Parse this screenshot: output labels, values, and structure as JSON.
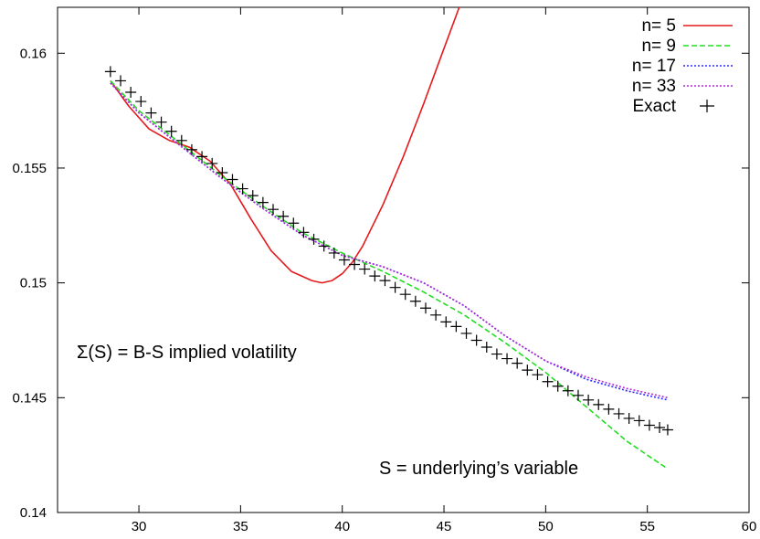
{
  "chart_data": {
    "type": "line",
    "title": "",
    "xlabel": "",
    "ylabel": "",
    "xlim": [
      26,
      60
    ],
    "ylim": [
      0.14,
      0.162
    ],
    "xticks": [
      30,
      35,
      40,
      45,
      50,
      55,
      60
    ],
    "yticks": [
      0.14,
      0.145,
      0.15,
      0.155,
      0.16
    ],
    "xtick_labels": [
      "30",
      "35",
      "40",
      "45",
      "50",
      "55",
      "60"
    ],
    "ytick_labels": [
      "0.14",
      "0.145",
      "0.15",
      "0.155",
      "0.16"
    ],
    "grid": false,
    "legend_position": "top-right",
    "annotations": [
      {
        "text": "Σ(S)  = B-S implied volatility"
      },
      {
        "text": "S = underlying’s variable"
      }
    ],
    "series": [
      {
        "name": "n= 5",
        "color": "#e41a1c",
        "style": "solid",
        "x": [
          28.6,
          29.5,
          30.5,
          31.5,
          32.5,
          33.5,
          34.5,
          35.5,
          36.5,
          37.5,
          38.5,
          39.0,
          39.5,
          40.0,
          40.5,
          41.0,
          42.0,
          43.0,
          44.0,
          45.0,
          46.0,
          46.5
        ],
        "y": [
          0.1588,
          0.1577,
          0.1567,
          0.1562,
          0.1559,
          0.1553,
          0.1543,
          0.1528,
          0.1514,
          0.1505,
          0.1501,
          0.15,
          0.1501,
          0.1504,
          0.1509,
          0.1516,
          0.1534,
          0.1555,
          0.1578,
          0.1602,
          0.1626,
          0.1638
        ]
      },
      {
        "name": "n= 9",
        "color": "#22dd22",
        "style": "dashed",
        "x": [
          28.6,
          30,
          32,
          34,
          36,
          38,
          40,
          42,
          44,
          46,
          48,
          50,
          52,
          54,
          56
        ],
        "y": [
          0.1588,
          0.1575,
          0.1561,
          0.1547,
          0.1534,
          0.1522,
          0.1513,
          0.1505,
          0.1496,
          0.1486,
          0.1474,
          0.1461,
          0.1446,
          0.1431,
          0.1419
        ]
      },
      {
        "name": "n= 17",
        "color": "#2a2aff",
        "style": "dotted",
        "x": [
          28.6,
          30,
          32,
          34,
          36,
          38,
          40,
          42,
          44,
          46,
          48,
          50,
          52,
          54,
          56
        ],
        "y": [
          0.1587,
          0.1574,
          0.156,
          0.1546,
          0.1533,
          0.1521,
          0.1512,
          0.1507,
          0.15,
          0.149,
          0.1477,
          0.1466,
          0.1458,
          0.1453,
          0.1449
        ]
      },
      {
        "name": "n= 33",
        "color": "#b02ad8",
        "style": "dotted",
        "x": [
          28.6,
          30,
          32,
          34,
          36,
          38,
          40,
          42,
          44,
          46,
          48,
          50,
          52,
          54,
          56
        ],
        "y": [
          0.1587,
          0.1574,
          0.156,
          0.1546,
          0.1533,
          0.1521,
          0.1512,
          0.1507,
          0.15,
          0.149,
          0.1477,
          0.1466,
          0.1459,
          0.1454,
          0.145
        ]
      },
      {
        "name": "Exact",
        "color": "#000000",
        "style": "points",
        "x": [
          28.6,
          29.1,
          29.6,
          30.1,
          30.6,
          31.1,
          31.6,
          32.1,
          32.6,
          33.1,
          33.6,
          34.1,
          34.6,
          35.1,
          35.6,
          36.1,
          36.6,
          37.1,
          37.6,
          38.1,
          38.6,
          39.1,
          39.6,
          40.1,
          40.6,
          41.1,
          41.6,
          42.1,
          42.6,
          43.1,
          43.6,
          44.1,
          44.6,
          45.1,
          45.6,
          46.1,
          46.6,
          47.1,
          47.6,
          48.1,
          48.6,
          49.1,
          49.6,
          50.1,
          50.6,
          51.1,
          51.6,
          52.1,
          52.6,
          53.1,
          53.6,
          54.1,
          54.6,
          55.1,
          55.6,
          56.0
        ],
        "y": [
          0.1592,
          0.1588,
          0.1583,
          0.1579,
          0.1574,
          0.157,
          0.1566,
          0.1562,
          0.1558,
          0.1555,
          0.1552,
          0.1548,
          0.1545,
          0.1541,
          0.1538,
          0.1535,
          0.1532,
          0.1529,
          0.1526,
          0.1522,
          0.1519,
          0.1516,
          0.1513,
          0.151,
          0.1508,
          0.1506,
          0.1503,
          0.1501,
          0.1498,
          0.1495,
          0.1492,
          0.1489,
          0.1486,
          0.1483,
          0.1481,
          0.1478,
          0.1475,
          0.1472,
          0.1469,
          0.1467,
          0.1465,
          0.1462,
          0.146,
          0.1457,
          0.1455,
          0.1453,
          0.1451,
          0.1449,
          0.1447,
          0.1445,
          0.1443,
          0.1441,
          0.144,
          0.1438,
          0.1437,
          0.1436
        ]
      }
    ]
  }
}
